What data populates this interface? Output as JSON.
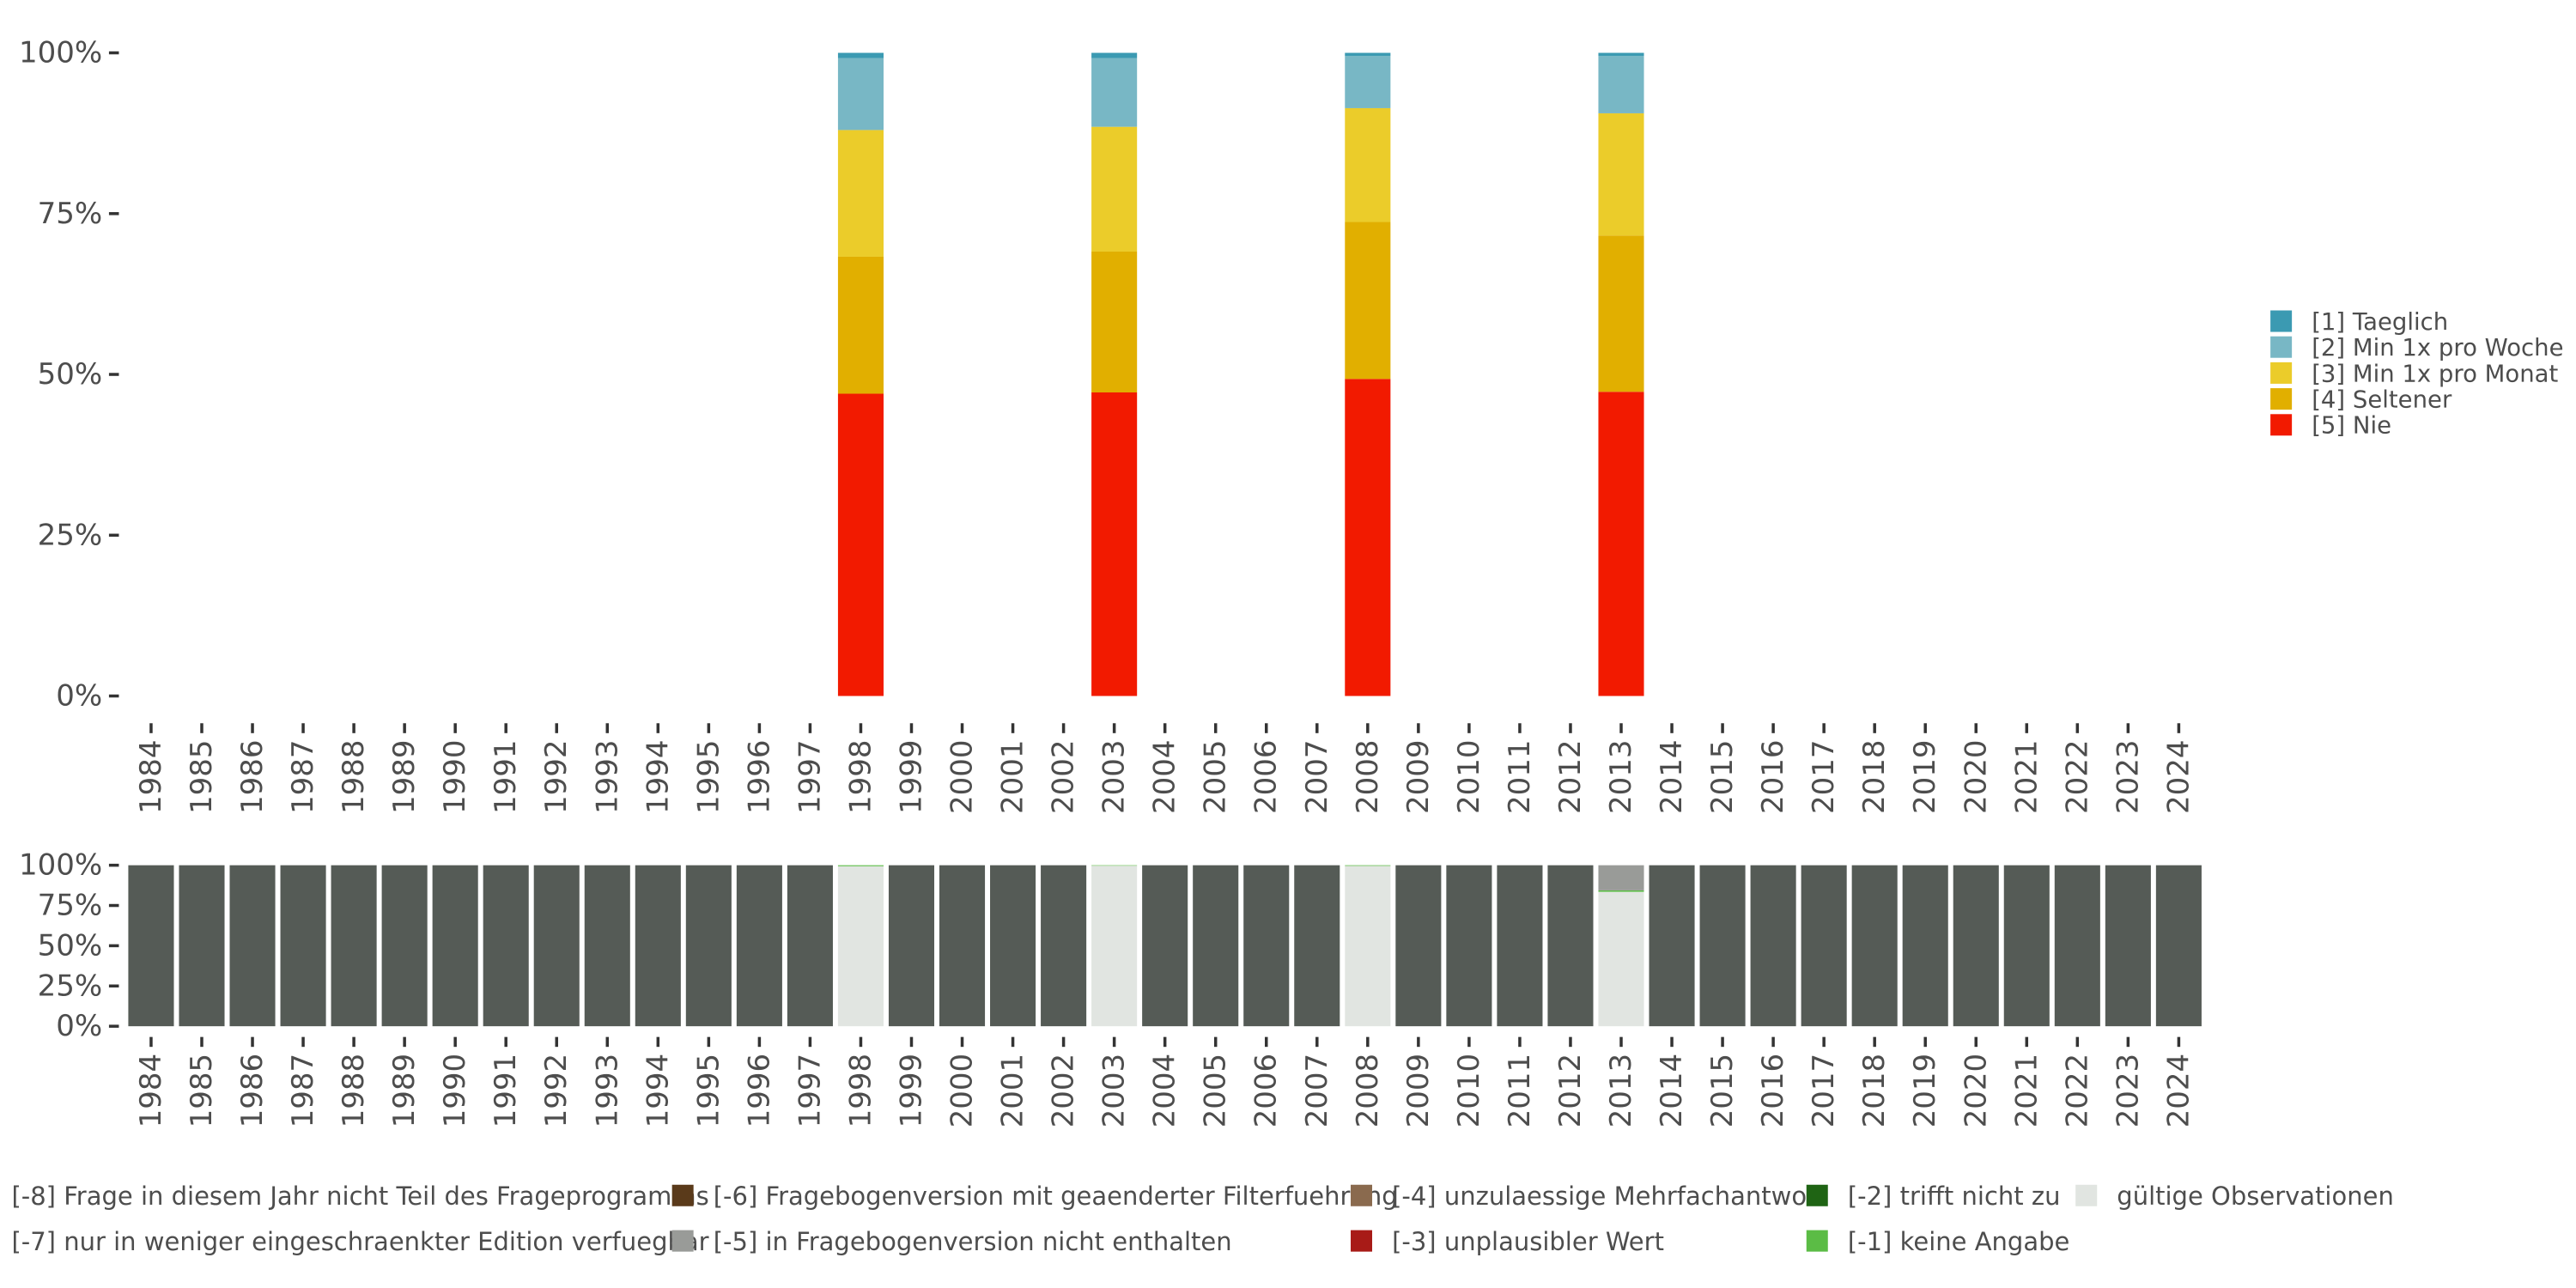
{
  "chart_data": [
    {
      "type": "bar",
      "stacked": true,
      "title": "",
      "xlabel": "",
      "ylabel": "",
      "ylim": [
        0,
        100
      ],
      "y_ticks": [
        "0%",
        "25%",
        "50%",
        "75%",
        "100%"
      ],
      "years": [
        "1984",
        "1985",
        "1986",
        "1987",
        "1988",
        "1989",
        "1990",
        "1991",
        "1992",
        "1993",
        "1994",
        "1995",
        "1996",
        "1997",
        "1998",
        "1999",
        "2000",
        "2001",
        "2002",
        "2003",
        "2004",
        "2005",
        "2006",
        "2007",
        "2008",
        "2009",
        "2010",
        "2011",
        "2012",
        "2013",
        "2014",
        "2015",
        "2016",
        "2017",
        "2018",
        "2019",
        "2020",
        "2021",
        "2022",
        "2023",
        "2024"
      ],
      "categories": [
        "1998",
        "2003",
        "2008",
        "2013"
      ],
      "series": [
        {
          "name": "[5] Nie",
          "color": "#F21A00",
          "values": [
            47.0,
            47.2,
            49.3,
            47.3
          ]
        },
        {
          "name": "[4] Seltener",
          "color": "#E1AF00",
          "values": [
            21.3,
            21.9,
            24.4,
            24.3
          ]
        },
        {
          "name": "[3] Min 1x pro Monat",
          "color": "#EBCC2A",
          "values": [
            19.7,
            19.4,
            17.7,
            19.0
          ]
        },
        {
          "name": "[2] Min 1x pro Woche",
          "color": "#78B7C5",
          "values": [
            11.2,
            10.7,
            8.1,
            8.9
          ]
        },
        {
          "name": "[1] Taeglich",
          "color": "#3B9AB2",
          "values": [
            0.8,
            0.8,
            0.5,
            0.5
          ]
        }
      ],
      "legend": "right"
    },
    {
      "type": "bar",
      "stacked": true,
      "title": "",
      "xlabel": "",
      "ylabel": "",
      "ylim": [
        0,
        100
      ],
      "y_ticks": [
        "0%",
        "25%",
        "50%",
        "75%",
        "100%"
      ],
      "categories": [
        "1984",
        "1985",
        "1986",
        "1987",
        "1988",
        "1989",
        "1990",
        "1991",
        "1992",
        "1993",
        "1994",
        "1995",
        "1996",
        "1997",
        "1998",
        "1999",
        "2000",
        "2001",
        "2002",
        "2003",
        "2004",
        "2005",
        "2006",
        "2007",
        "2008",
        "2009",
        "2010",
        "2011",
        "2012",
        "2013",
        "2014",
        "2015",
        "2016",
        "2017",
        "2018",
        "2019",
        "2020",
        "2021",
        "2022",
        "2023",
        "2024"
      ],
      "series": [
        {
          "name": "gültige Observationen",
          "color": "#E1E5E1",
          "values": [
            0,
            0,
            0,
            0,
            0,
            0,
            0,
            0,
            0,
            0,
            0,
            0,
            0,
            0,
            99.4,
            0,
            0,
            0,
            0,
            99.7,
            0,
            0,
            0,
            0,
            99.6,
            0,
            0,
            0,
            0,
            83.5,
            0,
            0,
            0,
            0,
            0,
            0,
            0,
            0,
            0,
            0,
            0
          ]
        },
        {
          "name": "[-1] keine Angabe",
          "color": "#5BBC45",
          "values": [
            0,
            0,
            0,
            0,
            0,
            0,
            0,
            0,
            0,
            0,
            0,
            0,
            0,
            0,
            0.6,
            0,
            0,
            0,
            0,
            0.3,
            0,
            0,
            0,
            0,
            0.4,
            0,
            0,
            0,
            0,
            0.9,
            0,
            0,
            0,
            0,
            0,
            0,
            0,
            0,
            0,
            0,
            0
          ]
        },
        {
          "name": "[-2] trifft nicht zu",
          "color": "#1F6414",
          "values": [
            0,
            0,
            0,
            0,
            0,
            0,
            0,
            0,
            0,
            0,
            0,
            0,
            0,
            0,
            0,
            0,
            0,
            0,
            0,
            0,
            0,
            0,
            0,
            0,
            0,
            0,
            0,
            0,
            0,
            0,
            0,
            0,
            0,
            0,
            0,
            0,
            0,
            0,
            0,
            0,
            0
          ]
        },
        {
          "name": "[-3] unplausibler Wert",
          "color": "#A81B17",
          "values": [
            0,
            0,
            0,
            0,
            0,
            0,
            0,
            0,
            0,
            0,
            0,
            0,
            0,
            0,
            0,
            0,
            0,
            0,
            0,
            0,
            0,
            0,
            0,
            0,
            0,
            0,
            0,
            0,
            0,
            0,
            0,
            0,
            0,
            0,
            0,
            0,
            0,
            0,
            0,
            0,
            0
          ]
        },
        {
          "name": "[-4] unzulaessige Mehrfachantwort",
          "color": "#8A6A4E",
          "values": [
            0,
            0,
            0,
            0,
            0,
            0,
            0,
            0,
            0,
            0,
            0,
            0,
            0,
            0,
            0,
            0,
            0,
            0,
            0,
            0,
            0,
            0,
            0,
            0,
            0,
            0,
            0,
            0,
            0,
            0,
            0,
            0,
            0,
            0,
            0,
            0,
            0,
            0,
            0,
            0,
            0
          ]
        },
        {
          "name": "[-5] in Fragebogenversion nicht enthalten",
          "color": "#999B98",
          "values": [
            0,
            0,
            0,
            0,
            0,
            0,
            0,
            0,
            0,
            0,
            0,
            0,
            0,
            0,
            0,
            0,
            0,
            0,
            0,
            0,
            0,
            0,
            0,
            0,
            0,
            0,
            0,
            0,
            0,
            15.6,
            0,
            0,
            0,
            0,
            0,
            0,
            0,
            0,
            0,
            0,
            0
          ]
        },
        {
          "name": "[-6] Fragebogenversion mit geaenderter Filterfuehrung",
          "color": "#5A3A1A",
          "values": [
            0,
            0,
            0,
            0,
            0,
            0,
            0,
            0,
            0,
            0,
            0,
            0,
            0,
            0,
            0,
            0,
            0,
            0,
            0,
            0,
            0,
            0,
            0,
            0,
            0,
            0,
            0,
            0,
            0,
            0,
            0,
            0,
            0,
            0,
            0,
            0,
            0,
            0,
            0,
            0,
            0
          ]
        },
        {
          "name": "[-7] nur in weniger eingeschraenkter Edition verfuegbar",
          "color": "#2C3530",
          "values": [
            0,
            0,
            0,
            0,
            0,
            0,
            0,
            0,
            0,
            0,
            0,
            0,
            0,
            0,
            0,
            0,
            0,
            0,
            0,
            0,
            0,
            0,
            0,
            0,
            0,
            0,
            0,
            0,
            0,
            0,
            0,
            0,
            0,
            0,
            0,
            0,
            0,
            0,
            0,
            0,
            0
          ]
        },
        {
          "name": "[-8] Frage in diesem Jahr nicht Teil des Frageprogramms",
          "color": "#555B56",
          "values": [
            100,
            100,
            100,
            100,
            100,
            100,
            100,
            100,
            100,
            100,
            100,
            100,
            100,
            100,
            0,
            100,
            100,
            100,
            100,
            0,
            100,
            100,
            100,
            100,
            0,
            100,
            100,
            100,
            100,
            0,
            100,
            100,
            100,
            100,
            100,
            100,
            100,
            100,
            100,
            100,
            100
          ]
        }
      ],
      "legend": "bottom",
      "legend_order": [
        "[-8] Frage in diesem Jahr nicht Teil des Frageprogramms",
        "[-7] nur in weniger eingeschraenkter Edition verfuegbar",
        "[-6] Fragebogenversion mit geaenderter Filterfuehrung",
        "[-5] in Fragebogenversion nicht enthalten",
        "[-4] unzulaessige Mehrfachantwort",
        "[-3] unplausibler Wert",
        "[-2] trifft nicht zu",
        "[-1] keine Angabe",
        "gültige Observationen"
      ]
    }
  ]
}
